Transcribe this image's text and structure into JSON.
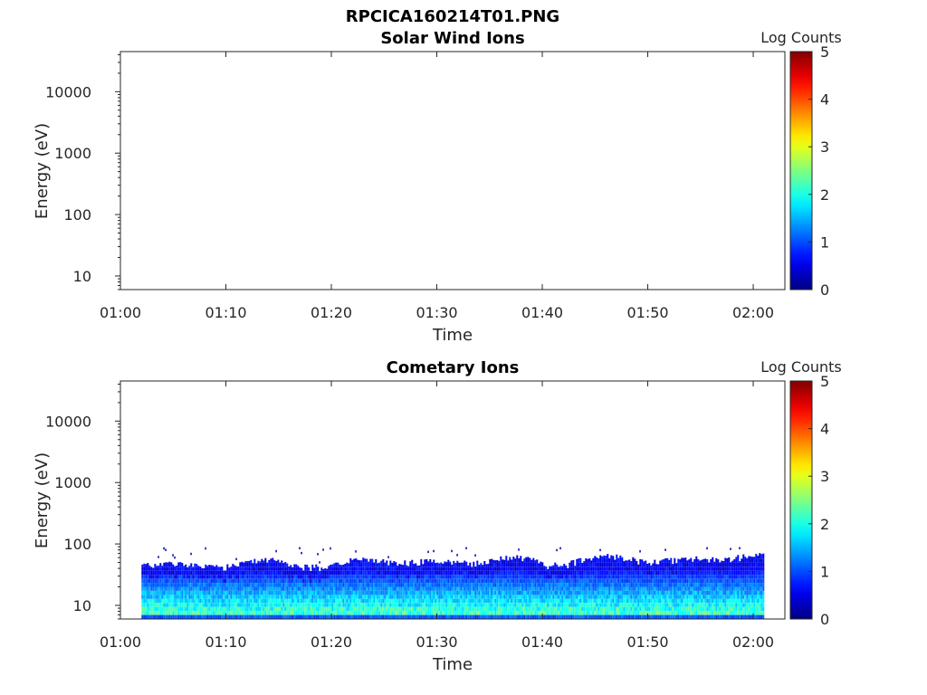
{
  "figure_title": "RPCICA160214T01.PNG",
  "chart_data": [
    {
      "type": "heatmap",
      "title": "Solar Wind Ions",
      "xlabel": "Time",
      "ylabel": "Energy (eV)",
      "x_range": [
        "01:00",
        "02:03"
      ],
      "x_ticks": [
        "01:00",
        "01:10",
        "01:20",
        "01:30",
        "01:40",
        "01:50",
        "02:00"
      ],
      "y_scale": "log",
      "y_range": [
        6,
        45000
      ],
      "y_ticks": [
        "10",
        "100",
        "1000",
        "10000"
      ],
      "colorbar": {
        "label": "Log Counts",
        "range": [
          0,
          5
        ],
        "ticks": [
          "0",
          "1",
          "2",
          "3",
          "4",
          "5"
        ],
        "colormap": "jet"
      },
      "has_data": false
    },
    {
      "type": "heatmap",
      "title": "Cometary Ions",
      "xlabel": "Time",
      "ylabel": "Energy (eV)",
      "x_range": [
        "01:00",
        "02:03"
      ],
      "x_ticks": [
        "01:00",
        "01:10",
        "01:20",
        "01:30",
        "01:40",
        "01:50",
        "02:00"
      ],
      "y_scale": "log",
      "y_range": [
        6,
        45000
      ],
      "y_ticks": [
        "10",
        "100",
        "1000",
        "10000"
      ],
      "colorbar": {
        "label": "Log Counts",
        "range": [
          0,
          5
        ],
        "ticks": [
          "0",
          "1",
          "2",
          "3",
          "4",
          "5"
        ],
        "colormap": "jet"
      },
      "has_data": true,
      "data_time_range": [
        "01:02",
        "02:01"
      ],
      "data_energy_range": [
        6,
        90
      ],
      "count_level_range": [
        0,
        2.5
      ]
    }
  ]
}
